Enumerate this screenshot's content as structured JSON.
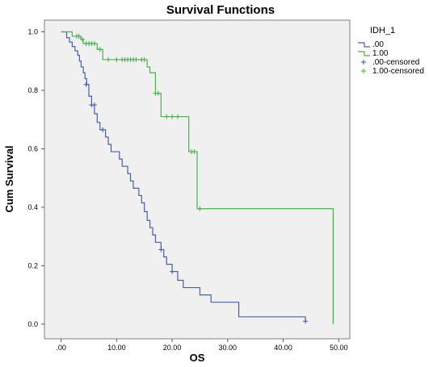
{
  "chart_data": {
    "type": "line",
    "title": "Survival Functions",
    "xlabel": "OS",
    "ylabel": "Cum Survival",
    "xlim": [
      -3,
      52
    ],
    "ylim": [
      -0.05,
      1.04
    ],
    "x_ticks": [
      {
        "value": 0,
        "label": ".00"
      },
      {
        "value": 10,
        "label": "10.00"
      },
      {
        "value": 20,
        "label": "20.00"
      },
      {
        "value": 30,
        "label": "30.00"
      },
      {
        "value": 40,
        "label": "40.00"
      },
      {
        "value": 50,
        "label": "50.00"
      }
    ],
    "y_ticks": [
      {
        "value": 0.0,
        "label": "0.0"
      },
      {
        "value": 0.2,
        "label": "0.2"
      },
      {
        "value": 0.4,
        "label": "0.4"
      },
      {
        "value": 0.6,
        "label": "0.6"
      },
      {
        "value": 0.8,
        "label": "0.8"
      },
      {
        "value": 1.0,
        "label": "1.0"
      }
    ],
    "grid": false,
    "legend": {
      "title": "IDH_1",
      "placement": "right",
      "entries": [
        {
          "label": ".00",
          "color": "#4a5fa8",
          "marker": "line"
        },
        {
          "label": "1.00",
          "color": "#4caf50",
          "marker": "line"
        },
        {
          "label": ".00-censored",
          "color": "#4a5fa8",
          "marker": "plus"
        },
        {
          "label": "1.00-censored",
          "color": "#4caf50",
          "marker": "plus"
        }
      ]
    },
    "series": [
      {
        "name": ".00",
        "color": "#4a5fa8",
        "steps": [
          [
            0,
            1.0
          ],
          [
            1.0,
            0.98
          ],
          [
            1.5,
            0.965
          ],
          [
            2.0,
            0.95
          ],
          [
            2.5,
            0.935
          ],
          [
            3.0,
            0.92
          ],
          [
            3.3,
            0.9
          ],
          [
            3.6,
            0.88
          ],
          [
            4.0,
            0.86
          ],
          [
            4.3,
            0.84
          ],
          [
            4.6,
            0.82
          ],
          [
            5.0,
            0.78
          ],
          [
            5.5,
            0.75
          ],
          [
            6.0,
            0.72
          ],
          [
            6.5,
            0.69
          ],
          [
            7.0,
            0.665
          ],
          [
            8.0,
            0.64
          ],
          [
            8.5,
            0.615
          ],
          [
            9.0,
            0.59
          ],
          [
            10.5,
            0.565
          ],
          [
            11.0,
            0.54
          ],
          [
            12.0,
            0.515
          ],
          [
            12.5,
            0.49
          ],
          [
            13.0,
            0.465
          ],
          [
            14.0,
            0.44
          ],
          [
            14.5,
            0.415
          ],
          [
            15.0,
            0.385
          ],
          [
            15.5,
            0.355
          ],
          [
            16.0,
            0.33
          ],
          [
            16.5,
            0.305
          ],
          [
            17.0,
            0.28
          ],
          [
            18.0,
            0.255
          ],
          [
            18.5,
            0.23
          ],
          [
            19.0,
            0.205
          ],
          [
            20.0,
            0.18
          ],
          [
            21.0,
            0.15
          ],
          [
            22.0,
            0.125
          ],
          [
            25.0,
            0.1
          ],
          [
            27.0,
            0.075
          ],
          [
            32.0,
            0.025
          ],
          [
            44.0,
            0.01
          ]
        ],
        "end_x": 44.0,
        "censored": [
          [
            4.5,
            0.82
          ],
          [
            5.5,
            0.75
          ],
          [
            6.0,
            0.75
          ],
          [
            7.5,
            0.665
          ],
          [
            18.0,
            0.255
          ],
          [
            20.0,
            0.18
          ],
          [
            44.0,
            0.01
          ]
        ]
      },
      {
        "name": "1.00",
        "color": "#4caf50",
        "steps": [
          [
            0,
            1.0
          ],
          [
            2.0,
            0.985
          ],
          [
            3.5,
            0.975
          ],
          [
            4.0,
            0.96
          ],
          [
            6.5,
            0.94
          ],
          [
            7.5,
            0.905
          ],
          [
            15.5,
            0.88
          ],
          [
            16.0,
            0.86
          ],
          [
            17.0,
            0.79
          ],
          [
            18.0,
            0.71
          ],
          [
            23.0,
            0.59
          ],
          [
            24.5,
            0.395
          ],
          [
            49.0,
            0.0
          ]
        ],
        "end_x": 49.0,
        "censored": [
          [
            2.8,
            0.985
          ],
          [
            3.2,
            0.985
          ],
          [
            3.8,
            0.975
          ],
          [
            4.5,
            0.96
          ],
          [
            5.0,
            0.96
          ],
          [
            5.5,
            0.96
          ],
          [
            6.0,
            0.96
          ],
          [
            7.0,
            0.94
          ],
          [
            8.5,
            0.905
          ],
          [
            10.0,
            0.905
          ],
          [
            11.0,
            0.905
          ],
          [
            11.5,
            0.905
          ],
          [
            12.0,
            0.905
          ],
          [
            12.5,
            0.905
          ],
          [
            13.0,
            0.905
          ],
          [
            13.5,
            0.905
          ],
          [
            14.5,
            0.905
          ],
          [
            15.0,
            0.905
          ],
          [
            17.0,
            0.79
          ],
          [
            17.5,
            0.79
          ],
          [
            19.0,
            0.71
          ],
          [
            20.0,
            0.71
          ],
          [
            21.0,
            0.71
          ],
          [
            23.5,
            0.59
          ],
          [
            24.0,
            0.59
          ],
          [
            25.0,
            0.395
          ]
        ]
      }
    ]
  }
}
